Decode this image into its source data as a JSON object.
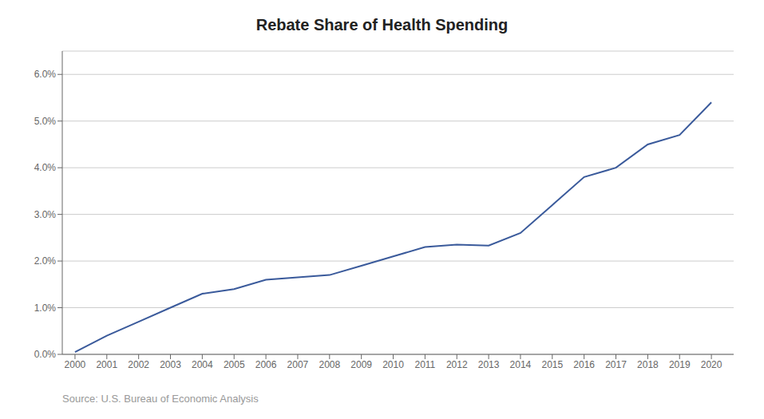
{
  "chart_data": {
    "type": "line",
    "title": "Rebate Share of Health Spending",
    "annotation": "Source: U.S. Bureau of Economic Analysis",
    "x": [
      2000,
      2001,
      2002,
      2003,
      2004,
      2005,
      2006,
      2007,
      2008,
      2009,
      2010,
      2011,
      2012,
      2013,
      2014,
      2015,
      2016,
      2017,
      2018,
      2019,
      2020
    ],
    "values": [
      0.0005,
      0.004,
      0.007,
      0.01,
      0.013,
      0.014,
      0.016,
      0.0165,
      0.017,
      0.019,
      0.021,
      0.023,
      0.0235,
      0.0233,
      0.026,
      0.032,
      0.038,
      0.04,
      0.045,
      0.047,
      0.054
    ],
    "color": "#3A5A9B",
    "xlim": [
      1999.6,
      2020.7
    ],
    "xticks": [
      2000,
      2001,
      2002,
      2003,
      2004,
      2005,
      2006,
      2007,
      2008,
      2009,
      2010,
      2011,
      2012,
      2013,
      2014,
      2015,
      2016,
      2017,
      2018,
      2019,
      2020
    ],
    "ylim": [
      0,
      0.065
    ],
    "yticks": [
      {
        "value": 0.0,
        "label": "0.0%"
      },
      {
        "value": 0.01,
        "label": "1.0%"
      },
      {
        "value": 0.02,
        "label": "2.0%"
      },
      {
        "value": 0.03,
        "label": "3.0%"
      },
      {
        "value": 0.04,
        "label": "4.0%"
      },
      {
        "value": 0.05,
        "label": "5.0%"
      },
      {
        "value": 0.06,
        "label": "6.0%"
      }
    ],
    "grid": true
  }
}
